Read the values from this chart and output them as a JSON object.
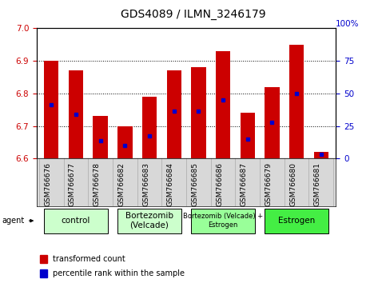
{
  "title": "GDS4089 / ILMN_3246179",
  "samples": [
    "GSM766676",
    "GSM766677",
    "GSM766678",
    "GSM766682",
    "GSM766683",
    "GSM766684",
    "GSM766685",
    "GSM766686",
    "GSM766687",
    "GSM766679",
    "GSM766680",
    "GSM766681"
  ],
  "bar_values": [
    6.9,
    6.87,
    6.73,
    6.7,
    6.79,
    6.87,
    6.88,
    6.93,
    6.74,
    6.82,
    6.95,
    6.62
  ],
  "percentile_values": [
    6.765,
    6.735,
    6.655,
    6.64,
    6.67,
    6.745,
    6.745,
    6.78,
    6.66,
    6.71,
    6.8,
    6.614
  ],
  "bar_bottom": 6.6,
  "ylim": [
    6.6,
    7.0
  ],
  "y2lim": [
    0,
    100
  ],
  "yticks": [
    6.6,
    6.7,
    6.8,
    6.9,
    7.0
  ],
  "y2ticks": [
    0,
    25,
    50,
    75,
    100
  ],
  "bar_color": "#CC0000",
  "percentile_color": "#0000CC",
  "bar_width": 0.6,
  "title_fontsize": 10,
  "tick_fontsize": 7.5,
  "sample_fontsize": 6.5,
  "agent_fontsize": 7.5,
  "legend_fontsize": 7,
  "bg_color": "#ffffff",
  "plot_bg": "#ffffff",
  "sample_bg": "#d8d8d8",
  "group_data": [
    {
      "label": "control",
      "indices": [
        0,
        1,
        2
      ],
      "color": "#ccffcc"
    },
    {
      "label": "Bortezomib\n(Velcade)",
      "indices": [
        3,
        4,
        5
      ],
      "color": "#ccffcc"
    },
    {
      "label": "Bortezomib (Velcade) +\nEstrogen",
      "indices": [
        6,
        7,
        8
      ],
      "color": "#99ff99"
    },
    {
      "label": "Estrogen",
      "indices": [
        9,
        10,
        11
      ],
      "color": "#44ee44"
    }
  ]
}
